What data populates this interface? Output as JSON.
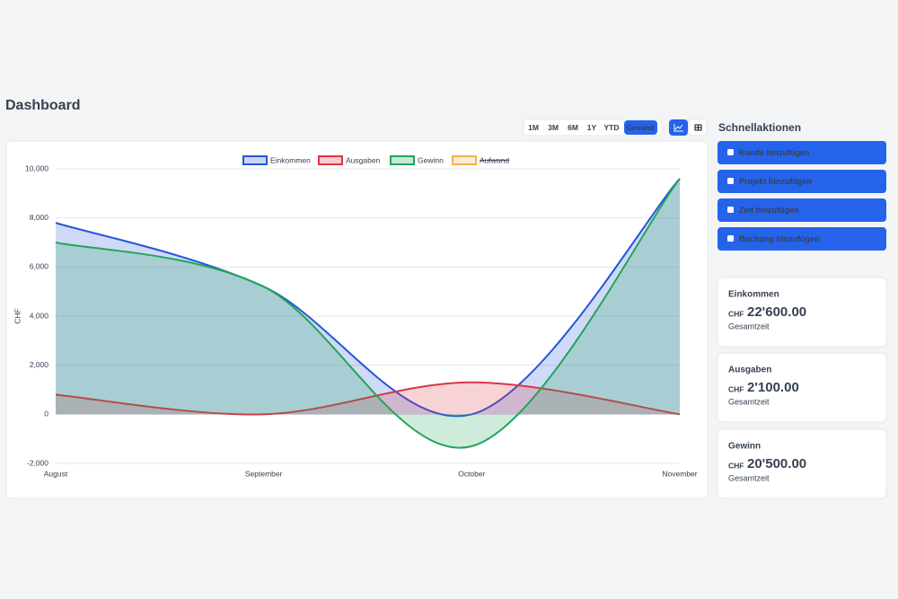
{
  "header": {
    "title": "Dashboard"
  },
  "range_buttons": {
    "labels": [
      "1M",
      "3M",
      "6M",
      "1Y",
      "YTD",
      "Gesamt"
    ],
    "active_index": 5
  },
  "chart_data": {
    "type": "line",
    "categories": [
      "August",
      "September",
      "October",
      "November"
    ],
    "y_label": "CHF",
    "ylim": [
      -2000,
      10000
    ],
    "yticks": [
      {
        "value": -2000,
        "label": "-2,000"
      },
      0,
      {
        "value": 2000,
        "label": "2,000"
      },
      {
        "value": 4000,
        "label": "4,000"
      },
      {
        "value": 6000,
        "label": "6,000"
      },
      {
        "value": 8000,
        "label": "8,000"
      },
      {
        "value": 10000,
        "label": "10,000"
      }
    ],
    "grid": true,
    "legend": "top",
    "fill": true,
    "series": [
      {
        "name": "Einkommen",
        "color": "#2456d8",
        "values": [
          7800,
          5200,
          0,
          9600
        ]
      },
      {
        "name": "Ausgaben",
        "color": "#dc3545",
        "values": [
          800,
          0,
          1300,
          0
        ]
      },
      {
        "name": "Gewinn",
        "color": "#22a55a",
        "values": [
          7000,
          5200,
          -1300,
          9600
        ]
      },
      {
        "name": "Aufwand",
        "color": "#f0b24e",
        "hidden": true,
        "values": [
          null,
          null,
          null,
          null
        ]
      }
    ]
  },
  "quick_actions": {
    "title": "Schnellaktionen",
    "buttons": [
      "Kunde hinzufügen",
      "Projekt hinzufügen",
      "Zeit hinzufügen",
      "Buchung hinzufügen"
    ]
  },
  "stats": [
    {
      "title": "Einkommen",
      "currency": "CHF",
      "amount": "22'600.00",
      "period": "Gesamtzeit",
      "color": "#22c55e"
    },
    {
      "title": "Ausgaben",
      "currency": "CHF",
      "amount": "2'100.00",
      "period": "Gesamtzeit",
      "color": "#f87171"
    },
    {
      "title": "Gewinn",
      "currency": "CHF",
      "amount": "20'500.00",
      "period": "Gesamtzeit",
      "color": "#111827"
    }
  ]
}
